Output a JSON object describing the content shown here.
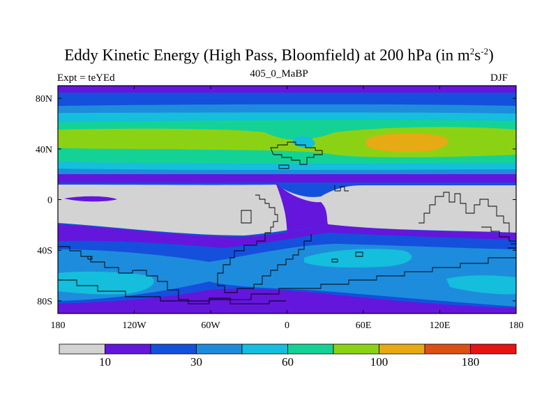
{
  "chart_data": {
    "type": "heatmap",
    "title": "Eddy Kinetic Energy (High Pass, Bloomfield) at 200 hPa",
    "title_units_prefix": "(in m",
    "title_units_exp1": "2",
    "title_units_mid": "s",
    "title_units_exp2": "-2",
    "title_units_suffix": ")",
    "subtitle": "405_0_MaBP",
    "left_label": "Expt = teYEd",
    "right_label": "DJF",
    "x_axis": {
      "range": [
        -180,
        180
      ],
      "ticks": [
        {
          "value": -180,
          "label": "180"
        },
        {
          "value": -120,
          "label": "120W"
        },
        {
          "value": -60,
          "label": "60W"
        },
        {
          "value": 0,
          "label": "0"
        },
        {
          "value": 60,
          "label": "60E"
        },
        {
          "value": 120,
          "label": "120E"
        },
        {
          "value": 180,
          "label": "180"
        }
      ]
    },
    "y_axis": {
      "range": [
        -90,
        90
      ],
      "ticks": [
        {
          "value": 80,
          "label": "80N"
        },
        {
          "value": 40,
          "label": "40N"
        },
        {
          "value": 0,
          "label": "0"
        },
        {
          "value": -40,
          "label": "40S"
        },
        {
          "value": -80,
          "label": "80S"
        }
      ]
    },
    "colorbar": {
      "colors": [
        "#d3d3d3",
        "#6416dc",
        "#1450dc",
        "#1e8cdc",
        "#14bedc",
        "#14d296",
        "#8cd214",
        "#e6aa14",
        "#dc5014",
        "#e61414"
      ],
      "boundaries": [
        0,
        10,
        20,
        30,
        45,
        60,
        80,
        100,
        140,
        180,
        220
      ],
      "labels": [
        {
          "value": "10",
          "after_box": 1
        },
        {
          "value": "30",
          "after_box": 3
        },
        {
          "value": "60",
          "after_box": 5
        },
        {
          "value": "100",
          "after_box": 7
        },
        {
          "value": "180",
          "after_box": 9
        }
      ]
    },
    "field_description": [
      {
        "feature": "NH jet, Atlantic/Europe core",
        "lon": -5,
        "lat": 44,
        "value": 75
      },
      {
        "feature": "NH jet, Asian core",
        "lon": 90,
        "lat": 44,
        "value": 110
      },
      {
        "feature": "Tropical minimum band",
        "lat_range": [
          -8,
          8
        ],
        "value": 5
      },
      {
        "feature": "SH storm track, Atlantic-Indian",
        "lon": 40,
        "lat": -45,
        "value": 50
      },
      {
        "feature": "SH storm track, Pacific",
        "lon": -150,
        "lat": -65,
        "value": 55
      }
    ]
  }
}
